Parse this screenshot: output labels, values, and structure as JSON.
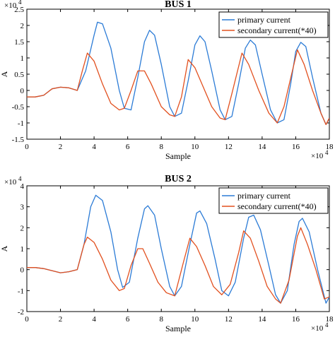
{
  "chart_data": [
    {
      "type": "line",
      "title": "BUS 1",
      "xlabel": "Sample",
      "ylabel": "A",
      "x_multiplier": "×10",
      "x_multiplier_exp": "4",
      "y_multiplier": "×10",
      "y_multiplier_exp": "4",
      "xlim": [
        0,
        18
      ],
      "ylim": [
        -1.5,
        2.5
      ],
      "xticks": [
        "0",
        "2",
        "4",
        "6",
        "8",
        "10",
        "12",
        "14",
        "16",
        "18"
      ],
      "yticks": [
        "-1.5",
        "-1",
        "-0.5",
        "0",
        "0.5",
        "1",
        "1.5",
        "2",
        "2.5"
      ],
      "legend_position": "top-right",
      "series": [
        {
          "name": "primary current",
          "color": "#2b7bd6",
          "points": [
            [
              0,
              -0.2
            ],
            [
              0.5,
              -0.2
            ],
            [
              1,
              -0.15
            ],
            [
              1.5,
              0.05
            ],
            [
              2,
              0.1
            ],
            [
              2.5,
              0.08
            ],
            [
              3,
              0.0
            ],
            [
              3.5,
              0.6
            ],
            [
              4,
              1.7
            ],
            [
              4.2,
              2.1
            ],
            [
              4.5,
              2.05
            ],
            [
              5,
              1.3
            ],
            [
              5.5,
              0.0
            ],
            [
              5.8,
              -0.55
            ],
            [
              6.2,
              -0.6
            ],
            [
              6.6,
              0.4
            ],
            [
              7,
              1.5
            ],
            [
              7.3,
              1.85
            ],
            [
              7.6,
              1.7
            ],
            [
              8,
              0.8
            ],
            [
              8.5,
              -0.5
            ],
            [
              8.8,
              -0.8
            ],
            [
              9.2,
              -0.7
            ],
            [
              9.6,
              0.3
            ],
            [
              10,
              1.4
            ],
            [
              10.3,
              1.68
            ],
            [
              10.6,
              1.5
            ],
            [
              11,
              0.6
            ],
            [
              11.5,
              -0.6
            ],
            [
              11.8,
              -0.9
            ],
            [
              12.2,
              -0.8
            ],
            [
              12.6,
              0.2
            ],
            [
              13,
              1.3
            ],
            [
              13.3,
              1.55
            ],
            [
              13.6,
              1.4
            ],
            [
              14,
              0.5
            ],
            [
              14.5,
              -0.6
            ],
            [
              14.9,
              -1.0
            ],
            [
              15.3,
              -0.9
            ],
            [
              15.7,
              0.2
            ],
            [
              16,
              1.2
            ],
            [
              16.3,
              1.48
            ],
            [
              16.6,
              1.35
            ],
            [
              17,
              0.4
            ],
            [
              17.5,
              -0.7
            ],
            [
              17.8,
              -1.05
            ],
            [
              18,
              -0.85
            ]
          ]
        },
        {
          "name": "secondary current(*40)",
          "color": "#e2501f",
          "points": [
            [
              0,
              -0.2
            ],
            [
              0.5,
              -0.2
            ],
            [
              1,
              -0.15
            ],
            [
              1.5,
              0.05
            ],
            [
              2,
              0.1
            ],
            [
              2.5,
              0.08
            ],
            [
              3,
              0.0
            ],
            [
              3.3,
              0.6
            ],
            [
              3.6,
              1.15
            ],
            [
              4,
              0.9
            ],
            [
              4.5,
              0.2
            ],
            [
              5,
              -0.4
            ],
            [
              5.5,
              -0.6
            ],
            [
              5.8,
              -0.55
            ],
            [
              6.2,
              0.0
            ],
            [
              6.6,
              0.6
            ],
            [
              7,
              0.6
            ],
            [
              7.4,
              0.2
            ],
            [
              8,
              -0.5
            ],
            [
              8.5,
              -0.75
            ],
            [
              8.8,
              -0.8
            ],
            [
              9.2,
              -0.2
            ],
            [
              9.6,
              0.95
            ],
            [
              10,
              0.7
            ],
            [
              10.5,
              0.1
            ],
            [
              11,
              -0.5
            ],
            [
              11.5,
              -0.85
            ],
            [
              11.8,
              -0.9
            ],
            [
              12.2,
              -0.1
            ],
            [
              12.8,
              1.15
            ],
            [
              13.2,
              0.8
            ],
            [
              13.8,
              0.0
            ],
            [
              14.4,
              -0.7
            ],
            [
              14.9,
              -1.0
            ],
            [
              15.3,
              -0.5
            ],
            [
              15.8,
              0.6
            ],
            [
              16.1,
              1.25
            ],
            [
              16.5,
              0.8
            ],
            [
              17,
              0.0
            ],
            [
              17.5,
              -0.7
            ],
            [
              17.8,
              -1.05
            ],
            [
              18,
              -0.85
            ]
          ]
        }
      ]
    },
    {
      "type": "line",
      "title": "BUS 2",
      "xlabel": "Sample",
      "ylabel": "A",
      "x_multiplier": "×10",
      "x_multiplier_exp": "4",
      "y_multiplier": "×10",
      "y_multiplier_exp": "4",
      "xlim": [
        0,
        18
      ],
      "ylim": [
        -2,
        4
      ],
      "xticks": [
        "0",
        "2",
        "4",
        "6",
        "8",
        "10",
        "12",
        "14",
        "16",
        "18"
      ],
      "yticks": [
        "-2",
        "-1",
        "0",
        "1",
        "2",
        "3",
        "4"
      ],
      "legend_position": "top-right",
      "series": [
        {
          "name": "primary current",
          "color": "#2b7bd6",
          "points": [
            [
              0,
              0.1
            ],
            [
              0.5,
              0.1
            ],
            [
              1,
              0.05
            ],
            [
              1.5,
              -0.05
            ],
            [
              2,
              -0.15
            ],
            [
              2.5,
              -0.1
            ],
            [
              3,
              0.0
            ],
            [
              3.4,
              1.2
            ],
            [
              3.8,
              3.0
            ],
            [
              4.1,
              3.55
            ],
            [
              4.5,
              3.3
            ],
            [
              5,
              1.8
            ],
            [
              5.4,
              0.0
            ],
            [
              5.7,
              -0.85
            ],
            [
              6.1,
              -0.6
            ],
            [
              6.6,
              1.5
            ],
            [
              7,
              2.9
            ],
            [
              7.2,
              3.05
            ],
            [
              7.6,
              2.6
            ],
            [
              8,
              1.0
            ],
            [
              8.5,
              -0.8
            ],
            [
              8.8,
              -1.25
            ],
            [
              9.2,
              -0.8
            ],
            [
              9.7,
              1.2
            ],
            [
              10.1,
              2.7
            ],
            [
              10.3,
              2.8
            ],
            [
              10.7,
              2.2
            ],
            [
              11.2,
              0.5
            ],
            [
              11.6,
              -1.0
            ],
            [
              12,
              -1.25
            ],
            [
              12.4,
              -0.6
            ],
            [
              12.9,
              1.5
            ],
            [
              13.2,
              2.5
            ],
            [
              13.5,
              2.6
            ],
            [
              13.9,
              1.9
            ],
            [
              14.4,
              0.2
            ],
            [
              14.8,
              -1.2
            ],
            [
              15.1,
              -1.6
            ],
            [
              15.5,
              -1.0
            ],
            [
              15.9,
              1.2
            ],
            [
              16.2,
              2.3
            ],
            [
              16.4,
              2.45
            ],
            [
              16.8,
              1.8
            ],
            [
              17.3,
              0.0
            ],
            [
              17.8,
              -1.6
            ],
            [
              18,
              -1.3
            ]
          ]
        },
        {
          "name": "secondary current(*40)",
          "color": "#e2501f",
          "points": [
            [
              0,
              0.1
            ],
            [
              0.5,
              0.1
            ],
            [
              1,
              0.05
            ],
            [
              1.5,
              -0.05
            ],
            [
              2,
              -0.15
            ],
            [
              2.5,
              -0.1
            ],
            [
              3,
              0.0
            ],
            [
              3.4,
              1.2
            ],
            [
              3.6,
              1.55
            ],
            [
              4,
              1.3
            ],
            [
              4.5,
              0.5
            ],
            [
              5,
              -0.5
            ],
            [
              5.5,
              -1.0
            ],
            [
              5.8,
              -0.9
            ],
            [
              6.2,
              0.2
            ],
            [
              6.6,
              1.0
            ],
            [
              6.9,
              1.0
            ],
            [
              7.3,
              0.3
            ],
            [
              7.8,
              -0.6
            ],
            [
              8.3,
              -1.1
            ],
            [
              8.8,
              -1.25
            ],
            [
              9.3,
              0.3
            ],
            [
              9.7,
              1.5
            ],
            [
              10.1,
              1.1
            ],
            [
              10.6,
              0.2
            ],
            [
              11.1,
              -0.8
            ],
            [
              11.6,
              -1.2
            ],
            [
              12.1,
              -0.7
            ],
            [
              12.6,
              0.8
            ],
            [
              12.9,
              1.85
            ],
            [
              13.3,
              1.5
            ],
            [
              13.8,
              0.4
            ],
            [
              14.3,
              -0.8
            ],
            [
              14.8,
              -1.4
            ],
            [
              15.1,
              -1.6
            ],
            [
              15.6,
              -0.5
            ],
            [
              16.1,
              1.6
            ],
            [
              16.3,
              2.0
            ],
            [
              16.7,
              1.2
            ],
            [
              17.2,
              0.0
            ],
            [
              17.7,
              -1.4
            ],
            [
              18,
              -1.3
            ]
          ]
        }
      ]
    }
  ]
}
